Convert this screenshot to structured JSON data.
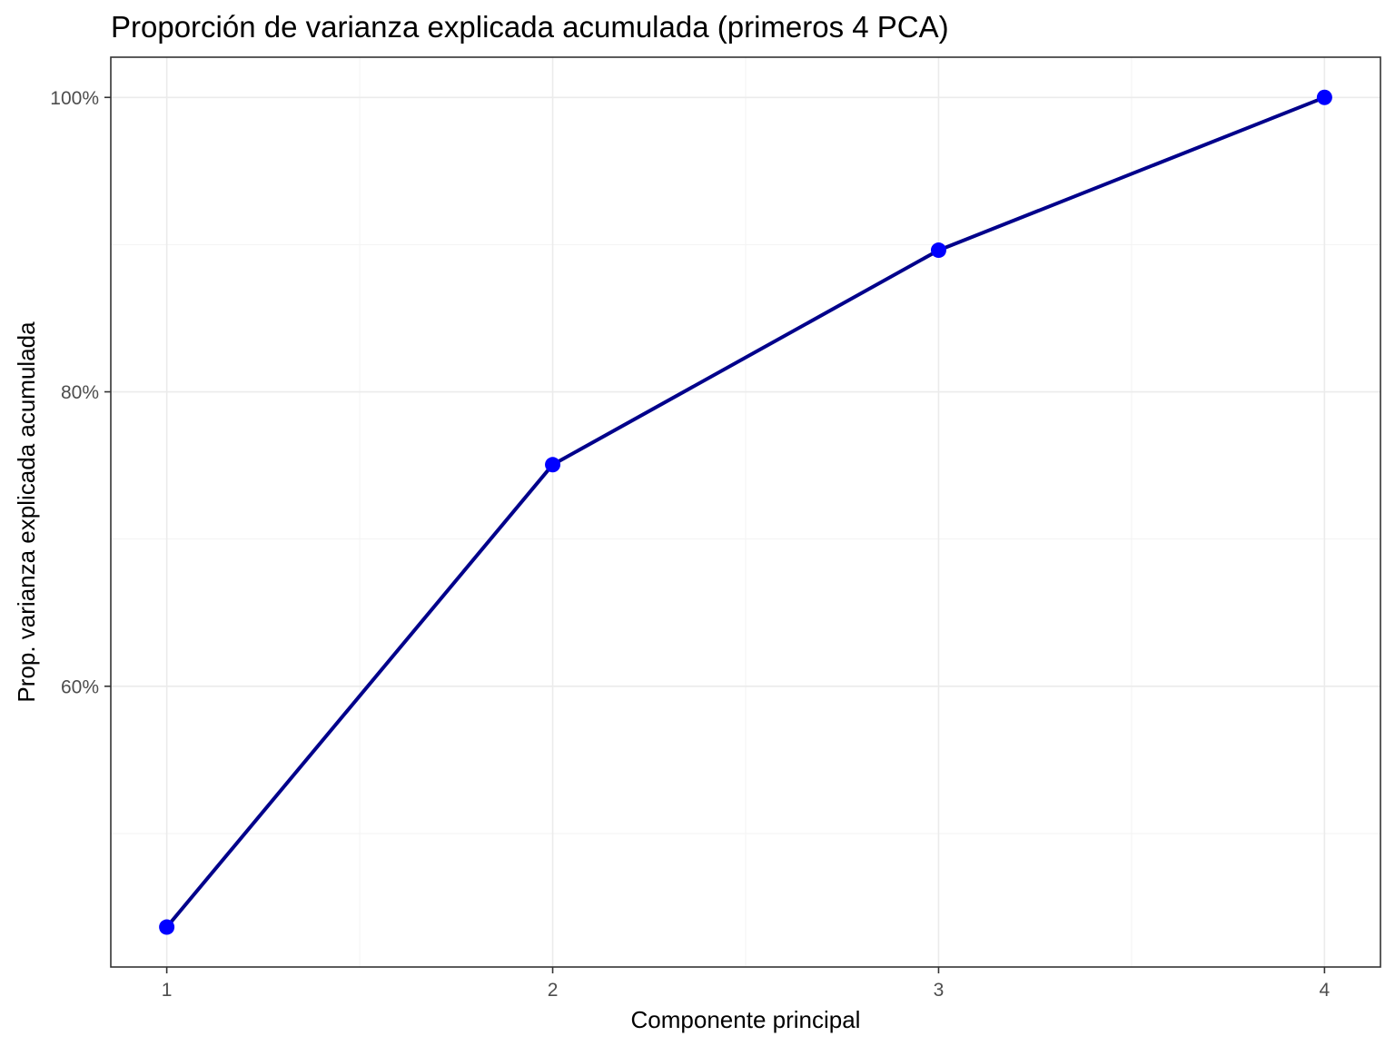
{
  "chart_data": {
    "type": "line",
    "title": "Proporción de varianza explicada acumulada (primeros 4 PCA)",
    "xlabel": "Componente principal",
    "ylabel": "Prop. varianza explicada acumulada",
    "x": [
      1,
      2,
      3,
      4
    ],
    "y": [
      0.4364,
      0.7505,
      0.8962,
      1.0
    ],
    "xlim": [
      0.855,
      4.145
    ],
    "ylim": [
      0.4093,
      1.0273
    ],
    "x_ticks": [
      1,
      2,
      3,
      4
    ],
    "x_tick_labels": [
      "1",
      "2",
      "3",
      "4"
    ],
    "y_ticks": [
      0.6,
      0.8,
      1.0
    ],
    "y_tick_labels": [
      "60%",
      "80%",
      "100%"
    ],
    "y_minor_ticks": [
      0.5,
      0.7,
      0.9
    ],
    "x_minor_ticks": [
      1.5,
      2.5,
      3.5
    ],
    "grid": true,
    "line_color": "#00008B",
    "point_color": "#0000FF"
  }
}
